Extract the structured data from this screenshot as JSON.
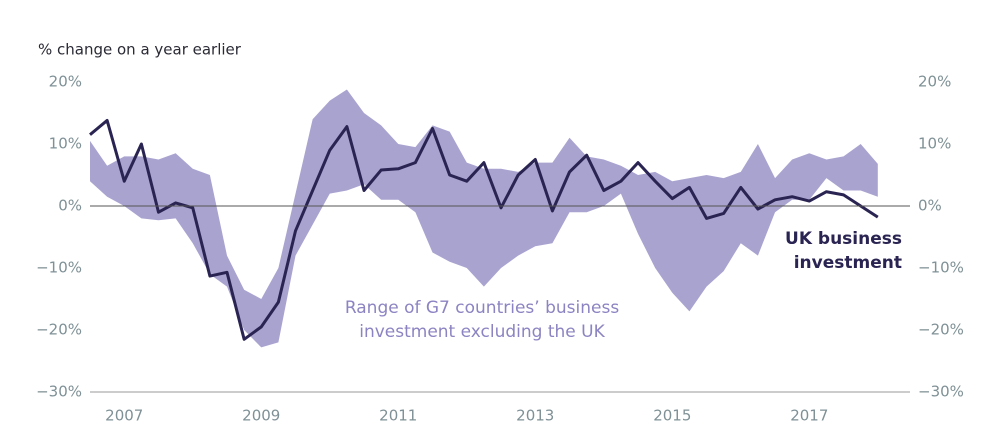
{
  "chart_data": {
    "type": "line",
    "title": "% change on a year earlier",
    "x": [
      2007,
      2007.25,
      2007.5,
      2007.75,
      2008,
      2008.25,
      2008.5,
      2008.75,
      2009,
      2009.25,
      2009.5,
      2009.75,
      2010,
      2010.25,
      2010.5,
      2010.75,
      2011,
      2011.25,
      2011.5,
      2011.75,
      2012,
      2012.25,
      2012.5,
      2012.75,
      2013,
      2013.25,
      2013.5,
      2013.75,
      2014,
      2014.25,
      2014.5,
      2014.75,
      2015,
      2015.25,
      2015.5,
      2015.75,
      2016,
      2016.25,
      2016.5,
      2016.75,
      2017,
      2017.25,
      2017.5,
      2017.75,
      2018,
      2018.25,
      2018.5
    ],
    "series": [
      {
        "name": "Range of G7 countries’ business investment excluding the UK",
        "type": "band",
        "color": "#a9a3d0",
        "high": [
          10.5,
          6.5,
          8,
          8,
          7.5,
          8.5,
          6,
          5,
          -8,
          -13.5,
          -15,
          -10,
          2,
          14,
          17,
          18.8,
          15,
          13,
          10,
          9.5,
          13,
          12,
          7,
          6,
          6,
          5.5,
          7,
          7,
          11,
          8,
          7.5,
          6.5,
          5,
          5.5,
          4,
          4.5,
          5,
          4.5,
          5.5,
          10,
          4.5,
          7.5,
          8.5,
          7.5,
          8,
          10,
          6.8
        ],
        "low": [
          4,
          1.5,
          0,
          -2,
          -2.3,
          -2,
          -6,
          -11,
          -13,
          -20,
          -22.8,
          -22,
          -8,
          -3,
          2,
          2.5,
          3.5,
          1,
          1,
          -1,
          -7.5,
          -9,
          -10,
          -13,
          -10,
          -8,
          -6.5,
          -6,
          -1,
          -1,
          0,
          2,
          -4.5,
          -10,
          -14,
          -17,
          -13,
          -10.5,
          -6,
          -8,
          -1,
          1,
          1,
          4.5,
          2.5,
          2.5,
          1.5
        ]
      },
      {
        "name": "UK business investment",
        "color": "#2a2452",
        "values": [
          11.5,
          13.8,
          4,
          10,
          -1,
          0.5,
          -0.3,
          -11.3,
          -10.7,
          -21.5,
          -19.5,
          -15.5,
          -4,
          2.5,
          9,
          12.8,
          2.5,
          5.8,
          6,
          7,
          12.5,
          5,
          4,
          7,
          -0.3,
          5,
          7.5,
          -0.8,
          5.5,
          8.2,
          2.5,
          4,
          7,
          4,
          1.2,
          3,
          -2,
          -1.2,
          3,
          -0.5,
          1,
          1.5,
          0.8,
          2.3,
          1.8,
          0,
          -1.8
        ]
      }
    ],
    "xlim": [
      2007,
      2018.97
    ],
    "xticks": [
      {
        "value": 2007.5,
        "label": "2007"
      },
      {
        "value": 2009.5,
        "label": "2009"
      },
      {
        "value": 2011.5,
        "label": "2011"
      },
      {
        "value": 2013.5,
        "label": "2013"
      },
      {
        "value": 2015.5,
        "label": "2015"
      },
      {
        "value": 2017.5,
        "label": "2017"
      }
    ],
    "ylim": [
      -30,
      20
    ],
    "yticks": [
      {
        "value": -30,
        "label": "−30%"
      },
      {
        "value": -20,
        "label": "−20%"
      },
      {
        "value": -10,
        "label": "−10%"
      },
      {
        "value": 0,
        "label": "0%"
      },
      {
        "value": 10,
        "label": "10%"
      },
      {
        "value": 20,
        "label": "20%"
      }
    ]
  }
}
